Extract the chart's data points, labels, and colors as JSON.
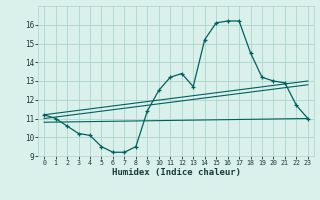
{
  "xlabel": "Humidex (Indice chaleur)",
  "ylabel": "",
  "bg_color": "#daf0eb",
  "grid_color": "#aed4cc",
  "line_color": "#006060",
  "xlim": [
    -0.5,
    23.5
  ],
  "ylim": [
    9,
    17
  ],
  "xticks": [
    0,
    1,
    2,
    3,
    4,
    5,
    6,
    7,
    8,
    9,
    10,
    11,
    12,
    13,
    14,
    15,
    16,
    17,
    18,
    19,
    20,
    21,
    22,
    23
  ],
  "yticks": [
    9,
    10,
    11,
    12,
    13,
    14,
    15,
    16
  ],
  "main_x": [
    0,
    1,
    2,
    3,
    4,
    5,
    6,
    7,
    8,
    9,
    10,
    11,
    12,
    13,
    14,
    15,
    16,
    17,
    18,
    19,
    20,
    21,
    22,
    23
  ],
  "main_y": [
    11.2,
    11.0,
    10.6,
    10.2,
    10.1,
    9.5,
    9.2,
    9.2,
    9.5,
    11.4,
    12.5,
    13.2,
    13.4,
    12.7,
    15.2,
    16.1,
    16.2,
    16.2,
    14.5,
    13.2,
    13.0,
    12.9,
    11.7,
    11.0
  ],
  "line2_x": [
    0,
    23
  ],
  "line2_y": [
    11.2,
    13.0
  ],
  "line3_x": [
    0,
    23
  ],
  "line3_y": [
    11.0,
    12.8
  ],
  "line4_x": [
    0,
    23
  ],
  "line4_y": [
    10.8,
    11.0
  ]
}
